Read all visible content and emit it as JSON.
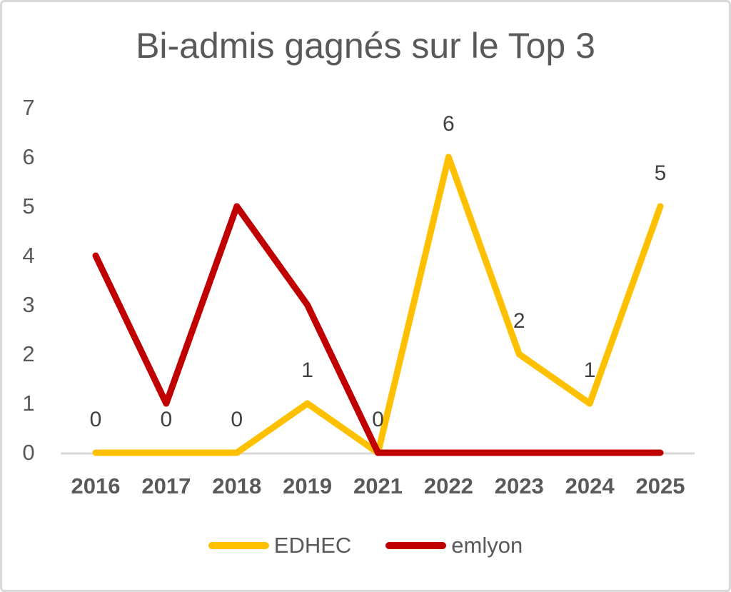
{
  "chart_data": {
    "type": "line",
    "title": "Bi-admis gagnés sur le Top 3",
    "categories": [
      "2016",
      "2017",
      "2018",
      "2019",
      "2021",
      "2022",
      "2023",
      "2024",
      "2025"
    ],
    "series": [
      {
        "name": "EDHEC",
        "color": "#FFC000",
        "values": [
          0,
          0,
          0,
          1,
          0,
          6,
          2,
          1,
          5
        ],
        "data_labels": [
          "0",
          "0",
          "0",
          "1",
          "0",
          "6",
          "2",
          "1",
          "5"
        ]
      },
      {
        "name": "emlyon",
        "color": "#C00000",
        "values": [
          4,
          1,
          5,
          3,
          0,
          0,
          0,
          0,
          0
        ],
        "data_labels": null
      }
    ],
    "y_ticks": [
      "7",
      "6",
      "5",
      "4",
      "3",
      "2",
      "1",
      "0"
    ],
    "ylim": [
      0,
      7
    ],
    "grid": false,
    "legend_position": "bottom",
    "colors": {
      "title_text": "#595959",
      "axis_text": "#595959",
      "data_label_text": "#404040",
      "axis_line": "#D9D9D9"
    }
  }
}
